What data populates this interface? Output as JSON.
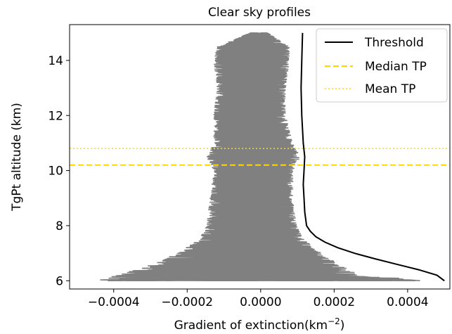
{
  "chart_data": {
    "type": "line",
    "title": "Clear sky profiles",
    "xlabel_text": "Gradient of extinction(km",
    "xlabel_sup": "−2",
    "xlabel_tail": ")",
    "ylabel": "TgPt altitude (km)",
    "xlim": [
      -0.00052,
      0.000515
    ],
    "ylim": [
      5.7,
      15.3
    ],
    "x_ticks": [
      -0.0004,
      -0.0002,
      0.0,
      0.0002,
      0.0004
    ],
    "x_tick_labels": [
      "−0.0004",
      "−0.0002",
      "0.0000",
      "0.0002",
      "0.0004"
    ],
    "y_ticks": [
      6,
      8,
      10,
      12,
      14
    ],
    "y_tick_labels": [
      "6",
      "8",
      "10",
      "12",
      "14"
    ],
    "grid": false,
    "legend_position": "top-right",
    "series": [
      {
        "name": "Threshold",
        "style": "solid",
        "color": "#000000",
        "points": [
          [
            0.000114,
            15.0
          ],
          [
            0.000112,
            14.0
          ],
          [
            0.00011,
            13.0
          ],
          [
            0.000112,
            12.0
          ],
          [
            0.000116,
            11.0
          ],
          [
            0.00012,
            10.5
          ],
          [
            0.000118,
            10.0
          ],
          [
            0.000116,
            9.5
          ],
          [
            0.000118,
            9.0
          ],
          [
            0.00012,
            8.5
          ],
          [
            0.000125,
            8.0
          ],
          [
            0.000135,
            7.8
          ],
          [
            0.00015,
            7.6
          ],
          [
            0.000175,
            7.4
          ],
          [
            0.00021,
            7.2
          ],
          [
            0.000255,
            7.0
          ],
          [
            0.00031,
            6.8
          ],
          [
            0.00037,
            6.6
          ],
          [
            0.00043,
            6.4
          ],
          [
            0.00048,
            6.2
          ],
          [
            0.0005,
            6.0
          ]
        ]
      },
      {
        "name": "Median TP",
        "style": "dashed",
        "color": "#ffd700",
        "y": 10.2
      },
      {
        "name": "Mean TP",
        "style": "dotted",
        "color": "#ffd700",
        "y": 10.8
      }
    ],
    "profiles_band": {
      "color": "#808080",
      "envelope": [
        [
          15.0,
          -3e-05,
          2e-05
        ],
        [
          14.5,
          -0.00012,
          8e-05
        ],
        [
          14.0,
          -0.00013,
          8e-05
        ],
        [
          13.0,
          -0.00012,
          7e-05
        ],
        [
          12.0,
          -0.00013,
          7e-05
        ],
        [
          11.0,
          -0.00013,
          9e-05
        ],
        [
          10.5,
          -0.00015,
          0.00011
        ],
        [
          10.0,
          -0.00013,
          9e-05
        ],
        [
          9.0,
          -0.00014,
          9e-05
        ],
        [
          8.0,
          -0.00015,
          0.0001
        ],
        [
          7.5,
          -0.00017,
          0.00012
        ],
        [
          7.0,
          -0.00023,
          0.00017
        ],
        [
          6.5,
          -0.00032,
          0.00023
        ],
        [
          6.2,
          -0.0004,
          0.00028
        ],
        [
          6.0,
          -0.00047,
          0.00047
        ]
      ]
    }
  }
}
